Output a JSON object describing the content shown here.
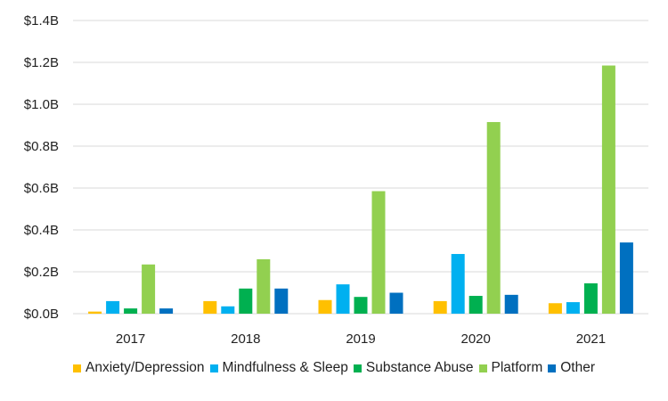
{
  "chart_data": {
    "type": "bar",
    "categories": [
      "2017",
      "2018",
      "2019",
      "2020",
      "2021"
    ],
    "series": [
      {
        "name": "Anxiety/Depression",
        "color": "#FFC000",
        "values": [
          0.01,
          0.06,
          0.065,
          0.06,
          0.05
        ]
      },
      {
        "name": "Mindfulness & Sleep",
        "color": "#00B0F0",
        "values": [
          0.06,
          0.035,
          0.14,
          0.285,
          0.055
        ]
      },
      {
        "name": "Substance Abuse",
        "color": "#00B050",
        "values": [
          0.025,
          0.12,
          0.08,
          0.085,
          0.145
        ]
      },
      {
        "name": "Platform",
        "color": "#92D050",
        "values": [
          0.235,
          0.26,
          0.585,
          0.915,
          1.185
        ]
      },
      {
        "name": "Other",
        "color": "#0070C0",
        "values": [
          0.025,
          0.12,
          0.1,
          0.09,
          0.34
        ]
      }
    ],
    "ylim": [
      0,
      1.4
    ],
    "yticks": [
      {
        "value": 0,
        "label": "$0.0B"
      },
      {
        "value": 0.2,
        "label": "$0.2B"
      },
      {
        "value": 0.4,
        "label": "$0.4B"
      },
      {
        "value": 0.6,
        "label": "$0.6B"
      },
      {
        "value": 0.8,
        "label": "$0.8B"
      },
      {
        "value": 1.0,
        "label": "$1.0B"
      },
      {
        "value": 1.2,
        "label": "$1.2B"
      },
      {
        "value": 1.4,
        "label": "$1.4B"
      }
    ],
    "grid": true,
    "legend_position": "bottom"
  }
}
